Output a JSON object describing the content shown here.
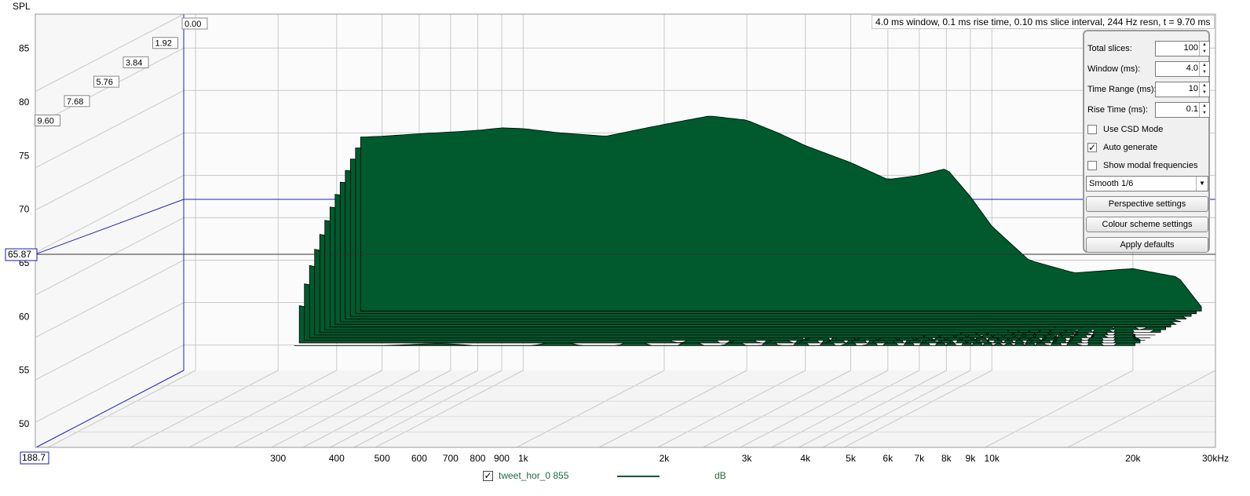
{
  "chart_data": {
    "type": "area",
    "style": "cumulative spectral decay waterfall (3D perspective)",
    "ylabel": "SPL",
    "yticks": [
      50,
      55,
      60,
      65,
      70,
      75,
      80,
      85
    ],
    "ylim": [
      47,
      89
    ],
    "cursor_value": "65.87",
    "x_axis_start_label": "188.7",
    "x_scale": "log",
    "xlim": [
      188.7,
      30000
    ],
    "xticks": [
      {
        "v": 300,
        "label": "300"
      },
      {
        "v": 400,
        "label": "400"
      },
      {
        "v": 500,
        "label": "500"
      },
      {
        "v": 600,
        "label": "600"
      },
      {
        "v": 700,
        "label": "700"
      },
      {
        "v": 800,
        "label": "800"
      },
      {
        "v": 900,
        "label": "900"
      },
      {
        "v": 1000,
        "label": "1k"
      },
      {
        "v": 2000,
        "label": "2k"
      },
      {
        "v": 3000,
        "label": "3k"
      },
      {
        "v": 4000,
        "label": "4k"
      },
      {
        "v": 5000,
        "label": "5k"
      },
      {
        "v": 6000,
        "label": "6k"
      },
      {
        "v": 7000,
        "label": "7k"
      },
      {
        "v": 8000,
        "label": "8k"
      },
      {
        "v": 9000,
        "label": "9k"
      },
      {
        "v": 10000,
        "label": "10k"
      },
      {
        "v": 20000,
        "label": "20k"
      },
      {
        "v": 30000,
        "label": "30kHz"
      }
    ],
    "time_slice_labels_ms": [
      "0.00",
      "1.92",
      "3.84",
      "5.76",
      "7.68",
      "9.60"
    ],
    "series_color": "#005a2e",
    "front_slice_db": {
      "freq_hz": [
        450,
        500,
        600,
        700,
        800,
        900,
        1000,
        1200,
        1500,
        1800,
        2000,
        2500,
        3000,
        3500,
        4000,
        5000,
        6000,
        7000,
        8000,
        9000,
        10000,
        12000,
        15000,
        20000,
        25000,
        28000
      ],
      "spl_db": [
        74.5,
        74.6,
        74.9,
        75.1,
        75.3,
        75.6,
        75.5,
        75.0,
        74.6,
        75.5,
        76.0,
        77.0,
        76.5,
        75.0,
        73.5,
        71.5,
        69.5,
        70.0,
        70.8,
        67.5,
        64.0,
        60.0,
        58.5,
        59.0,
        58.0,
        54.5
      ]
    },
    "info_text": "4.0 ms window, 0.1 ms rise time, 0.10 ms slice interval, 244 Hz resn, t = 9.70 ms",
    "legend": {
      "series": "tweet_hor_0 855",
      "unit": "dB",
      "checked": true
    }
  },
  "controls": {
    "total_slices_label": "Total slices:",
    "total_slices": "100",
    "window_label": "Window (ms):",
    "window": "4.0",
    "time_range_label": "Time Range (ms):",
    "time_range": "10",
    "rise_time_label": "Rise Time (ms):",
    "rise_time": "0.1",
    "use_csd_label": "Use CSD Mode",
    "use_csd": false,
    "auto_generate_label": "Auto generate",
    "auto_generate": true,
    "modal_label": "Show modal frequencies",
    "modal": false,
    "smoothing": "Smooth 1/6",
    "perspective_btn": "Perspective settings",
    "colour_btn": "Colour scheme settings",
    "defaults_btn": "Apply defaults"
  }
}
